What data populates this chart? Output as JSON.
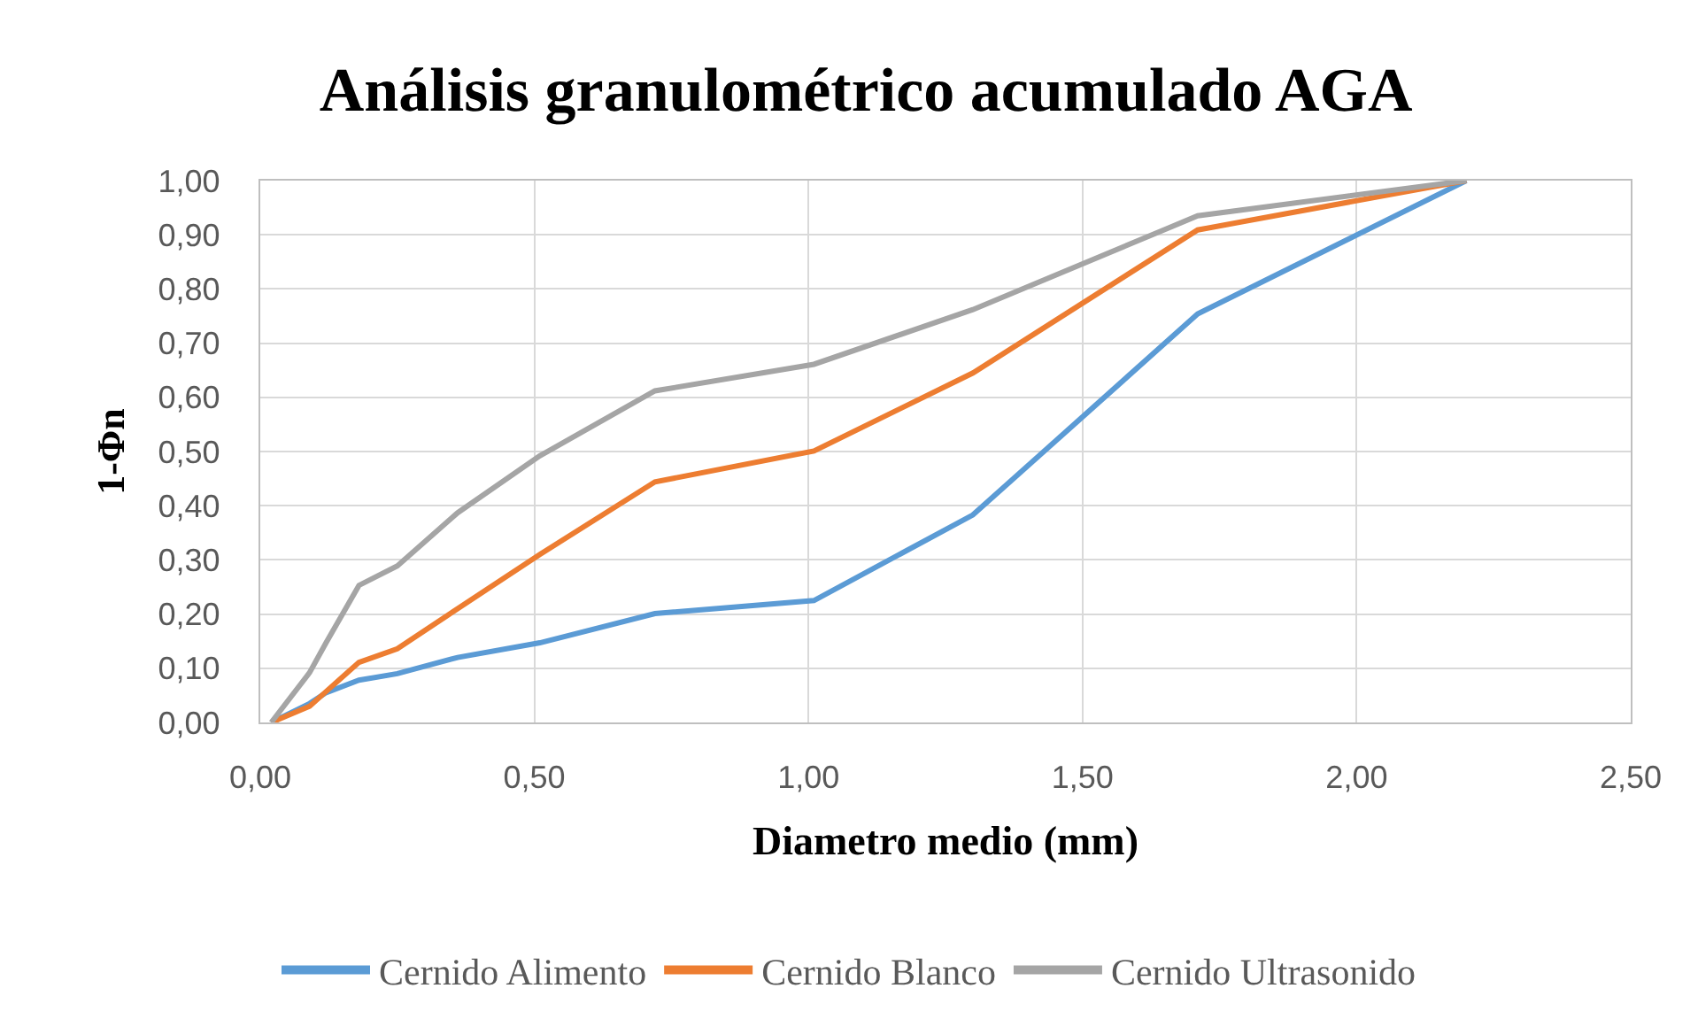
{
  "chart_data": {
    "type": "line",
    "title": "Análisis granulométrico acumulado AGA",
    "xlabel": "Diametro medio (mm)",
    "ylabel": "1-Φn",
    "x": [
      0.02,
      0.09,
      0.12,
      0.18,
      0.25,
      0.36,
      0.51,
      0.72,
      1.01,
      1.3,
      1.71,
      2.2
    ],
    "series": [
      {
        "name": "Cernido Alimento",
        "color": "#5b9bd5",
        "values": [
          0.0,
          0.035,
          0.055,
          0.078,
          0.09,
          0.12,
          0.147,
          0.201,
          0.225,
          0.383,
          0.754,
          1.0
        ]
      },
      {
        "name": "Cernido Blanco",
        "color": "#ed7d31",
        "values": [
          0.0,
          0.03,
          0.057,
          0.111,
          0.136,
          0.21,
          0.31,
          0.444,
          0.501,
          0.645,
          0.909,
          1.0
        ]
      },
      {
        "name": "Cernido Ultrasonido",
        "color": "#a5a5a5",
        "values": [
          0.0,
          0.092,
          0.147,
          0.253,
          0.289,
          0.387,
          0.492,
          0.612,
          0.661,
          0.762,
          0.935,
          1.0
        ]
      }
    ],
    "xlim": [
      0,
      2.5
    ],
    "xticks": [
      {
        "value": 0,
        "label": "0,00"
      },
      {
        "value": 0.5,
        "label": "0,50"
      },
      {
        "value": 1.0,
        "label": "1,00"
      },
      {
        "value": 1.5,
        "label": "1,50"
      },
      {
        "value": 2.0,
        "label": "2,00"
      },
      {
        "value": 2.5,
        "label": "2,50"
      }
    ],
    "ylim": [
      0,
      1
    ],
    "yticks": [
      {
        "value": 0,
        "label": "0,00"
      },
      {
        "value": 0.1,
        "label": "0,10"
      },
      {
        "value": 0.2,
        "label": "0,20"
      },
      {
        "value": 0.3,
        "label": "0,30"
      },
      {
        "value": 0.4,
        "label": "0,40"
      },
      {
        "value": 0.5,
        "label": "0,50"
      },
      {
        "value": 0.6,
        "label": "0,60"
      },
      {
        "value": 0.7,
        "label": "0,70"
      },
      {
        "value": 0.8,
        "label": "0,80"
      },
      {
        "value": 0.9,
        "label": "0,90"
      },
      {
        "value": 1.0,
        "label": "1,00"
      }
    ],
    "grid": true,
    "legend": "bottom",
    "marker": "none",
    "line_style": "solid"
  }
}
